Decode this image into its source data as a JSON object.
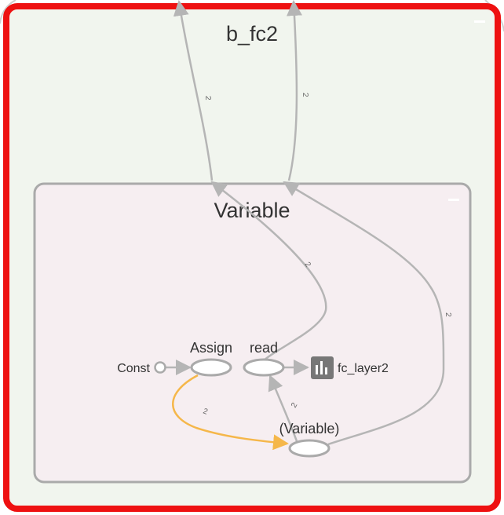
{
  "graph": {
    "outer_group": {
      "title": "b_fc2",
      "collapse_symbol": "—"
    },
    "inner_group": {
      "title": "Variable",
      "collapse_symbol": "—"
    },
    "nodes": {
      "const": "Const",
      "assign": "Assign",
      "read": "read",
      "variable": "(Variable)",
      "summary": "fc_layer2"
    },
    "edge_labels": {
      "out_left": "2",
      "out_right": "2",
      "read_up": "2",
      "variable_up": "2",
      "assign_to_variable": "2",
      "variable_to_read": "2"
    },
    "colors": {
      "outer_border": "#ee1111",
      "outer_fill": "#f1f5ee",
      "inner_border": "#aaaaaa",
      "inner_fill": "#f6eef1",
      "edge": "#b5b5b5",
      "ref_edge": "#f5b74a",
      "summary_icon": "#777777"
    }
  }
}
